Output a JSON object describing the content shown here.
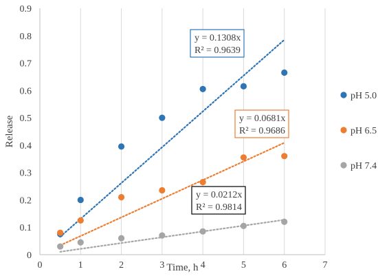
{
  "chart_data": {
    "type": "scatter",
    "xlabel": "Time, h",
    "ylabel": "Release",
    "xlim": [
      0,
      7
    ],
    "ylim": [
      0,
      0.9
    ],
    "xticks": [
      0,
      1,
      2,
      3,
      4,
      5,
      6,
      7
    ],
    "yticks": [
      0,
      0.1,
      0.2,
      0.3,
      0.4,
      0.5,
      0.6,
      0.7,
      0.8,
      0.9
    ],
    "grid": "vertical",
    "legend": "right",
    "series": [
      {
        "name": "pH 5.0",
        "color": "#2e75b6",
        "x": [
          0.5,
          1,
          2,
          3,
          4,
          5,
          6
        ],
        "y": [
          0.075,
          0.2,
          0.395,
          0.5,
          0.605,
          0.615,
          0.665
        ],
        "trendline": {
          "slope": 0.1308,
          "equation": "y = 0.1308x",
          "r2": "R² = 0.9639"
        }
      },
      {
        "name": "pH 6.5",
        "color": "#ed7d31",
        "x": [
          0.5,
          1,
          2,
          3,
          4,
          5,
          6
        ],
        "y": [
          0.08,
          0.125,
          0.21,
          0.235,
          0.265,
          0.355,
          0.36
        ],
        "trendline": {
          "slope": 0.0681,
          "equation": "y = 0.0681x",
          "r2": "R² = 0.9686"
        }
      },
      {
        "name": "pH 7.4",
        "color": "#a5a5a5",
        "x": [
          0.5,
          1,
          2,
          3,
          4,
          5,
          6
        ],
        "y": [
          0.03,
          0.045,
          0.06,
          0.07,
          0.085,
          0.105,
          0.12
        ],
        "trendline": {
          "slope": 0.0212,
          "equation": "y = 0.0212x",
          "r2": "R² = 0.9814"
        }
      }
    ]
  }
}
